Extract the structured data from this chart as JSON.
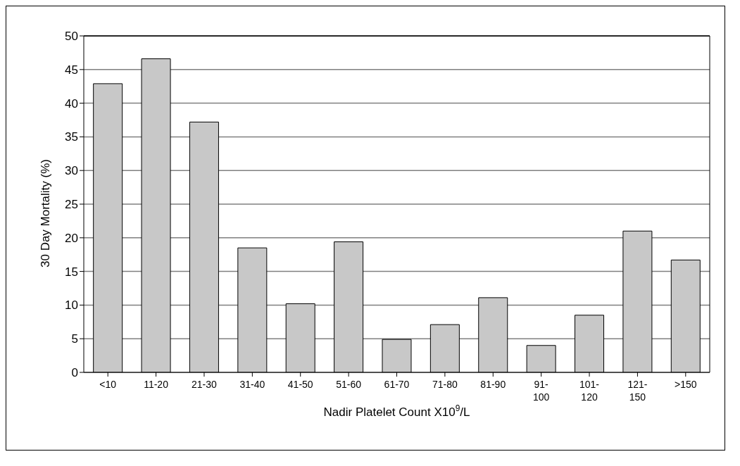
{
  "chart_data": {
    "type": "bar",
    "xlabel": "Nadir Platelet Count X10$^{9}$/L",
    "ylabel": "30 Day Mortality (%)",
    "categories": [
      "<10",
      "11-20",
      "21-30",
      "31-40",
      "41-50",
      "51-60",
      "61-70",
      "71-80",
      "81-90",
      "91-100",
      "101-120",
      "121-150",
      ">150"
    ],
    "values": [
      42.9,
      46.6,
      37.2,
      18.5,
      10.2,
      19.4,
      4.9,
      7.1,
      11.1,
      4.0,
      8.5,
      21.0,
      16.7
    ],
    "color": "#c8c8c8",
    "ylim": [
      0,
      50
    ],
    "yticks": [
      0,
      5,
      10,
      15,
      20,
      25,
      30,
      35,
      40,
      45,
      50
    ],
    "grid": "y"
  }
}
